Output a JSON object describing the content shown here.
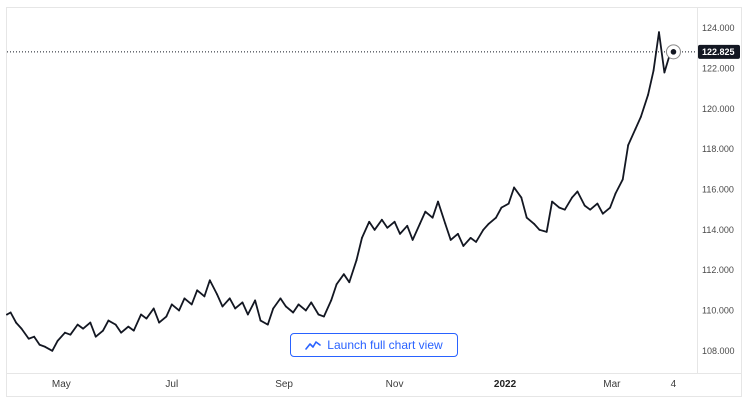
{
  "launch_button": {
    "label": "Launch full chart view",
    "icon": "trend-line-icon"
  },
  "colors": {
    "line": "#131722",
    "accent": "#2962ff",
    "grid": "#ececec",
    "axis_text": "#4a4a4a",
    "price_label_bg": "#131722"
  },
  "chart_data": {
    "type": "line",
    "title": "",
    "xlabel": "",
    "ylabel": "",
    "ylim": [
      106.9,
      125.0
    ],
    "y_ticks": [
      "108.000",
      "110.000",
      "112.000",
      "114.000",
      "116.000",
      "118.000",
      "120.000",
      "122.000",
      "124.000"
    ],
    "x_ticks": [
      {
        "label": "May",
        "date": "2021-05-01",
        "bold": false
      },
      {
        "label": "Jul",
        "date": "2021-07-01",
        "bold": false
      },
      {
        "label": "Sep",
        "date": "2021-09-01",
        "bold": false
      },
      {
        "label": "Nov",
        "date": "2021-11-01",
        "bold": false
      },
      {
        "label": "2022",
        "date": "2022-01-01",
        "bold": true
      },
      {
        "label": "Mar",
        "date": "2022-03-01",
        "bold": false
      },
      {
        "label": "4",
        "date": "2022-04-04",
        "bold": false
      }
    ],
    "x_range": [
      "2021-04-01",
      "2022-04-17"
    ],
    "last_value": 122.825,
    "last_value_label": "122.825",
    "grid": false,
    "series": [
      {
        "name": "",
        "points": [
          [
            "2021-04-01",
            109.8
          ],
          [
            "2021-04-03",
            109.9
          ],
          [
            "2021-04-06",
            109.4
          ],
          [
            "2021-04-09",
            109.1
          ],
          [
            "2021-04-13",
            108.6
          ],
          [
            "2021-04-16",
            108.7
          ],
          [
            "2021-04-19",
            108.3
          ],
          [
            "2021-04-22",
            108.2
          ],
          [
            "2021-04-26",
            108.0
          ],
          [
            "2021-04-29",
            108.5
          ],
          [
            "2021-05-03",
            108.9
          ],
          [
            "2021-05-06",
            108.8
          ],
          [
            "2021-05-10",
            109.3
          ],
          [
            "2021-05-13",
            109.1
          ],
          [
            "2021-05-17",
            109.4
          ],
          [
            "2021-05-20",
            108.7
          ],
          [
            "2021-05-24",
            109.0
          ],
          [
            "2021-05-27",
            109.5
          ],
          [
            "2021-05-31",
            109.3
          ],
          [
            "2021-06-03",
            108.9
          ],
          [
            "2021-06-07",
            109.2
          ],
          [
            "2021-06-10",
            109.0
          ],
          [
            "2021-06-14",
            109.8
          ],
          [
            "2021-06-17",
            109.6
          ],
          [
            "2021-06-21",
            110.1
          ],
          [
            "2021-06-24",
            109.4
          ],
          [
            "2021-06-28",
            109.7
          ],
          [
            "2021-07-01",
            110.3
          ],
          [
            "2021-07-05",
            110.0
          ],
          [
            "2021-07-08",
            110.6
          ],
          [
            "2021-07-12",
            110.3
          ],
          [
            "2021-07-15",
            111.0
          ],
          [
            "2021-07-19",
            110.7
          ],
          [
            "2021-07-22",
            111.5
          ],
          [
            "2021-07-26",
            110.8
          ],
          [
            "2021-07-29",
            110.2
          ],
          [
            "2021-08-02",
            110.6
          ],
          [
            "2021-08-05",
            110.1
          ],
          [
            "2021-08-09",
            110.4
          ],
          [
            "2021-08-12",
            109.8
          ],
          [
            "2021-08-16",
            110.5
          ],
          [
            "2021-08-19",
            109.5
          ],
          [
            "2021-08-23",
            109.3
          ],
          [
            "2021-08-26",
            110.1
          ],
          [
            "2021-08-30",
            110.6
          ],
          [
            "2021-09-02",
            110.2
          ],
          [
            "2021-09-06",
            109.9
          ],
          [
            "2021-09-09",
            110.3
          ],
          [
            "2021-09-13",
            110.0
          ],
          [
            "2021-09-16",
            110.4
          ],
          [
            "2021-09-20",
            109.8
          ],
          [
            "2021-09-23",
            109.7
          ],
          [
            "2021-09-27",
            110.5
          ],
          [
            "2021-09-30",
            111.3
          ],
          [
            "2021-10-04",
            111.8
          ],
          [
            "2021-10-07",
            111.4
          ],
          [
            "2021-10-11",
            112.5
          ],
          [
            "2021-10-14",
            113.6
          ],
          [
            "2021-10-18",
            114.4
          ],
          [
            "2021-10-21",
            114.0
          ],
          [
            "2021-10-25",
            114.5
          ],
          [
            "2021-10-28",
            114.1
          ],
          [
            "2021-11-01",
            114.4
          ],
          [
            "2021-11-04",
            113.8
          ],
          [
            "2021-11-08",
            114.2
          ],
          [
            "2021-11-11",
            113.5
          ],
          [
            "2021-11-15",
            114.3
          ],
          [
            "2021-11-18",
            114.9
          ],
          [
            "2021-11-22",
            114.6
          ],
          [
            "2021-11-25",
            115.4
          ],
          [
            "2021-11-29",
            114.3
          ],
          [
            "2021-12-02",
            113.5
          ],
          [
            "2021-12-06",
            113.8
          ],
          [
            "2021-12-09",
            113.2
          ],
          [
            "2021-12-13",
            113.6
          ],
          [
            "2021-12-16",
            113.4
          ],
          [
            "2021-12-20",
            114.0
          ],
          [
            "2021-12-23",
            114.3
          ],
          [
            "2021-12-27",
            114.6
          ],
          [
            "2021-12-30",
            115.1
          ],
          [
            "2022-01-03",
            115.3
          ],
          [
            "2022-01-06",
            116.1
          ],
          [
            "2022-01-10",
            115.6
          ],
          [
            "2022-01-13",
            114.6
          ],
          [
            "2022-01-17",
            114.3
          ],
          [
            "2022-01-20",
            114.0
          ],
          [
            "2022-01-24",
            113.9
          ],
          [
            "2022-01-27",
            115.4
          ],
          [
            "2022-01-31",
            115.1
          ],
          [
            "2022-02-03",
            115.0
          ],
          [
            "2022-02-07",
            115.6
          ],
          [
            "2022-02-10",
            115.9
          ],
          [
            "2022-02-14",
            115.2
          ],
          [
            "2022-02-17",
            115.0
          ],
          [
            "2022-02-21",
            115.3
          ],
          [
            "2022-02-24",
            114.8
          ],
          [
            "2022-02-28",
            115.1
          ],
          [
            "2022-03-03",
            115.8
          ],
          [
            "2022-03-07",
            116.5
          ],
          [
            "2022-03-10",
            118.2
          ],
          [
            "2022-03-14",
            119.0
          ],
          [
            "2022-03-17",
            119.6
          ],
          [
            "2022-03-21",
            120.7
          ],
          [
            "2022-03-24",
            121.9
          ],
          [
            "2022-03-27",
            123.8
          ],
          [
            "2022-03-30",
            121.8
          ],
          [
            "2022-04-02",
            122.7
          ],
          [
            "2022-04-04",
            122.825
          ]
        ]
      }
    ]
  }
}
